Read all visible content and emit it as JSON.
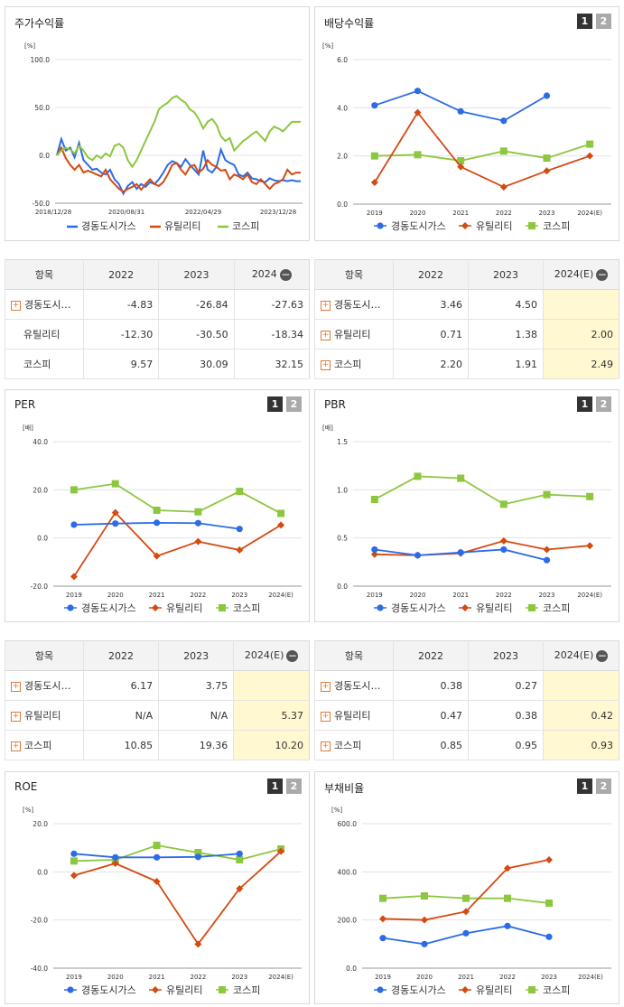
{
  "colors": {
    "gas": "#2d6be6",
    "util": "#d44a12",
    "kospi": "#8dc63f"
  },
  "legend": {
    "gas": "경동도시가스",
    "util": "유틸리티",
    "kospi": "코스피"
  },
  "badges": {
    "b1": "1",
    "b2": "2"
  },
  "charts": {
    "price": {
      "title": "주가수익률",
      "unit": "[%]"
    },
    "div": {
      "title": "배당수익률",
      "unit": "[%]"
    },
    "per": {
      "title": "PER",
      "unit": "[배]"
    },
    "pbr": {
      "title": "PBR",
      "unit": "[배]"
    },
    "roe": {
      "title": "ROE",
      "unit": "[%]"
    },
    "debt": {
      "title": "부채비율",
      "unit": "[%]"
    }
  },
  "chart_data": [
    {
      "id": "price",
      "type": "line",
      "title": "주가수익률",
      "ylabel": "[%]",
      "ylim": [
        -50,
        100
      ],
      "yticks": [
        "100.0",
        "50.0",
        "0.0",
        "-50.0"
      ],
      "xticks": [
        "2018/12/28",
        "2020/08/31",
        "2022/04/29",
        "2023/12/28"
      ],
      "series": [
        {
          "key": "gas",
          "name": "경동도시가스",
          "values": [
            0,
            17,
            5,
            8,
            -2,
            13,
            -5,
            -10,
            -15,
            -14,
            -18,
            -20,
            -15,
            -25,
            -30,
            -40,
            -32,
            -28,
            -35,
            -30,
            -33,
            -28,
            -30,
            -25,
            -18,
            -10,
            -6,
            -8,
            -12,
            -4,
            -10,
            -15,
            -20,
            5,
            -15,
            -18,
            -12,
            6,
            -5,
            -8,
            -10,
            -20,
            -22,
            -18,
            -24,
            -25,
            -27,
            -28,
            -24,
            -26,
            -27,
            -26,
            -27,
            -26,
            -27,
            -27
          ]
        },
        {
          "key": "util",
          "name": "유틸리티",
          "values": [
            0,
            8,
            -3,
            -10,
            -15,
            -10,
            -18,
            -16,
            -18,
            -20,
            -22,
            -15,
            -25,
            -30,
            -35,
            -38,
            -35,
            -33,
            -30,
            -36,
            -30,
            -25,
            -30,
            -32,
            -28,
            -20,
            -10,
            -8,
            -15,
            -20,
            -12,
            -10,
            -18,
            -14,
            -5,
            -10,
            -12,
            -16,
            -15,
            -25,
            -20,
            -22,
            -25,
            -20,
            -28,
            -30,
            -25,
            -30,
            -35,
            -30,
            -28,
            -25,
            -15,
            -20,
            -18,
            -18
          ]
        },
        {
          "key": "kospi",
          "name": "코스피",
          "values": [
            0,
            5,
            8,
            6,
            2,
            10,
            5,
            -2,
            -5,
            0,
            -3,
            2,
            -1,
            10,
            12,
            8,
            -5,
            -12,
            -5,
            5,
            15,
            25,
            35,
            48,
            52,
            55,
            60,
            62,
            58,
            55,
            48,
            45,
            38,
            28,
            35,
            38,
            32,
            20,
            15,
            18,
            5,
            10,
            15,
            18,
            22,
            25,
            20,
            15,
            25,
            30,
            28,
            25,
            30,
            35,
            35,
            35
          ]
        }
      ]
    },
    {
      "id": "div",
      "type": "line",
      "title": "배당수익률",
      "ylabel": "[%]",
      "ylim": [
        0,
        6
      ],
      "yticks": [
        "6.0",
        "4.0",
        "2.0",
        "0.0"
      ],
      "categories": [
        "2019",
        "2020",
        "2021",
        "2022",
        "2023",
        "2024(E)"
      ],
      "series": [
        {
          "key": "gas",
          "name": "경동도시가스",
          "values": [
            4.1,
            4.7,
            3.85,
            3.46,
            4.5,
            null
          ]
        },
        {
          "key": "util",
          "name": "유틸리티",
          "values": [
            0.9,
            3.8,
            1.55,
            0.71,
            1.38,
            2.0
          ]
        },
        {
          "key": "kospi",
          "name": "코스피",
          "values": [
            2.0,
            2.05,
            1.8,
            2.2,
            1.91,
            2.49
          ]
        }
      ]
    },
    {
      "id": "per",
      "type": "line",
      "title": "PER",
      "ylabel": "[배]",
      "ylim": [
        -20,
        40
      ],
      "yticks": [
        "40.0",
        "20.0",
        "0.0",
        "-20.0"
      ],
      "categories": [
        "2019",
        "2020",
        "2021",
        "2022",
        "2023",
        "2024(E)"
      ],
      "series": [
        {
          "key": "gas",
          "name": "경동도시가스",
          "values": [
            5.5,
            6.0,
            6.3,
            6.17,
            3.75,
            null
          ]
        },
        {
          "key": "util",
          "name": "유틸리티",
          "values": [
            -16,
            10.5,
            -7.5,
            -1.5,
            -5,
            5.37
          ]
        },
        {
          "key": "kospi",
          "name": "코스피",
          "values": [
            20,
            22.5,
            11.5,
            10.85,
            19.36,
            10.2
          ]
        }
      ]
    },
    {
      "id": "pbr",
      "type": "line",
      "title": "PBR",
      "ylabel": "[배]",
      "ylim": [
        0,
        1.5
      ],
      "yticks": [
        "1.5",
        "1.0",
        "0.5",
        "0.0"
      ],
      "categories": [
        "2019",
        "2020",
        "2021",
        "2022",
        "2023",
        "2024(E)"
      ],
      "series": [
        {
          "key": "gas",
          "name": "경동도시가스",
          "values": [
            0.38,
            0.32,
            0.35,
            0.38,
            0.27,
            null
          ]
        },
        {
          "key": "util",
          "name": "유틸리티",
          "values": [
            0.33,
            0.32,
            0.34,
            0.47,
            0.38,
            0.42
          ]
        },
        {
          "key": "kospi",
          "name": "코스피",
          "values": [
            0.9,
            1.14,
            1.12,
            0.85,
            0.95,
            0.93
          ]
        }
      ]
    },
    {
      "id": "roe",
      "type": "line",
      "title": "ROE",
      "ylabel": "[%]",
      "ylim": [
        -40,
        20
      ],
      "yticks": [
        "20.0",
        "0.0",
        "-20.0",
        "-40.0"
      ],
      "categories": [
        "2019",
        "2020",
        "2021",
        "2022",
        "2023",
        "2024(E)"
      ],
      "series": [
        {
          "key": "gas",
          "name": "경동도시가스",
          "values": [
            7.5,
            6.0,
            6.0,
            6.2,
            7.5,
            null
          ]
        },
        {
          "key": "util",
          "name": "유틸리티",
          "values": [
            -1.5,
            3.5,
            -4,
            -30,
            -7,
            8.5
          ]
        },
        {
          "key": "kospi",
          "name": "코스피",
          "values": [
            4.5,
            5.0,
            11.0,
            8.0,
            5.0,
            9.5
          ]
        }
      ]
    },
    {
      "id": "debt",
      "type": "line",
      "title": "부채비율",
      "ylabel": "[%]",
      "ylim": [
        0,
        600
      ],
      "yticks": [
        "600.0",
        "400.0",
        "200.0",
        "0.0"
      ],
      "categories": [
        "2019",
        "2020",
        "2021",
        "2022",
        "2023",
        "2024(E)"
      ],
      "series": [
        {
          "key": "gas",
          "name": "경동도시가스",
          "values": [
            125,
            100,
            145,
            175,
            130,
            null
          ]
        },
        {
          "key": "util",
          "name": "유틸리티",
          "values": [
            205,
            200,
            235,
            415,
            450,
            null
          ]
        },
        {
          "key": "kospi",
          "name": "코스피",
          "values": [
            290,
            300,
            290,
            290,
            270,
            null
          ]
        }
      ]
    }
  ],
  "tables": {
    "price": {
      "head": [
        "항목",
        "2022",
        "2023",
        "2024"
      ],
      "rows": [
        {
          "name": "경동도시…",
          "plus": true,
          "v": [
            "-4.83",
            "-26.84",
            "-27.63"
          ]
        },
        {
          "name": "유틸리티",
          "plus": false,
          "v": [
            "-12.30",
            "-30.50",
            "-18.34"
          ]
        },
        {
          "name": "코스피",
          "plus": false,
          "v": [
            "9.57",
            "30.09",
            "32.15"
          ]
        }
      ]
    },
    "div": {
      "head": [
        "항목",
        "2022",
        "2023",
        "2024(E)"
      ],
      "rows": [
        {
          "name": "경동도시…",
          "plus": true,
          "v": [
            "3.46",
            "4.50",
            ""
          ]
        },
        {
          "name": "유틸리티",
          "plus": true,
          "v": [
            "0.71",
            "1.38",
            "2.00"
          ]
        },
        {
          "name": "코스피",
          "plus": true,
          "v": [
            "2.20",
            "1.91",
            "2.49"
          ]
        }
      ]
    },
    "per": {
      "head": [
        "항목",
        "2022",
        "2023",
        "2024(E)"
      ],
      "rows": [
        {
          "name": "경동도시…",
          "plus": true,
          "v": [
            "6.17",
            "3.75",
            ""
          ]
        },
        {
          "name": "유틸리티",
          "plus": true,
          "v": [
            "N/A",
            "N/A",
            "5.37"
          ]
        },
        {
          "name": "코스피",
          "plus": true,
          "v": [
            "10.85",
            "19.36",
            "10.20"
          ]
        }
      ]
    },
    "pbr": {
      "head": [
        "항목",
        "2022",
        "2023",
        "2024(E)"
      ],
      "rows": [
        {
          "name": "경동도시…",
          "plus": true,
          "v": [
            "0.38",
            "0.27",
            ""
          ]
        },
        {
          "name": "유틸리티",
          "plus": true,
          "v": [
            "0.47",
            "0.38",
            "0.42"
          ]
        },
        {
          "name": "코스피",
          "plus": true,
          "v": [
            "0.85",
            "0.95",
            "0.93"
          ]
        }
      ]
    }
  }
}
